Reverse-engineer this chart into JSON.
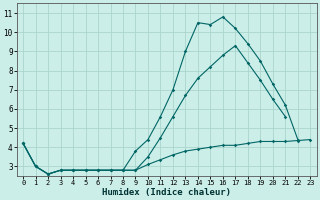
{
  "xlabel": "Humidex (Indice chaleur)",
  "bg_color": "#cceee8",
  "grid_color": "#aad4cc",
  "line_color": "#006666",
  "x_ticks": [
    0,
    1,
    2,
    3,
    4,
    5,
    6,
    7,
    8,
    9,
    10,
    11,
    12,
    13,
    14,
    15,
    16,
    17,
    18,
    19,
    20,
    21,
    22,
    23
  ],
  "y_ticks": [
    3,
    4,
    5,
    6,
    7,
    8,
    9,
    10,
    11
  ],
  "ylim": [
    2.5,
    11.5
  ],
  "xlim": [
    -0.5,
    23.5
  ],
  "series1_x": [
    0,
    1,
    2,
    3,
    4,
    5,
    6,
    7,
    8,
    9,
    10,
    11,
    12,
    13,
    14,
    15,
    16,
    17,
    18,
    19,
    20,
    21,
    22,
    23
  ],
  "series1_y": [
    4.2,
    3.0,
    2.6,
    2.8,
    2.8,
    2.8,
    2.8,
    2.8,
    2.8,
    2.8,
    3.1,
    3.35,
    3.6,
    3.8,
    3.9,
    4.0,
    4.1,
    4.1,
    4.2,
    4.3,
    4.3,
    4.3,
    4.35,
    4.4
  ],
  "series2_x": [
    0,
    1,
    2,
    3,
    4,
    5,
    6,
    7,
    8,
    9,
    10,
    11,
    12,
    13,
    14,
    15,
    16,
    17,
    18,
    19,
    20,
    21,
    22
  ],
  "series2_y": [
    4.2,
    3.0,
    2.6,
    2.8,
    2.8,
    2.8,
    2.8,
    2.8,
    2.8,
    3.8,
    4.4,
    5.6,
    7.0,
    9.0,
    10.5,
    10.4,
    10.8,
    10.2,
    9.4,
    8.5,
    7.3,
    6.2,
    4.4
  ],
  "series3_x": [
    0,
    1,
    2,
    3,
    4,
    5,
    6,
    7,
    8,
    9,
    10,
    11,
    12,
    13,
    14,
    15,
    16,
    17,
    18,
    19,
    20,
    21
  ],
  "series3_y": [
    4.2,
    3.0,
    2.6,
    2.8,
    2.8,
    2.8,
    2.8,
    2.8,
    2.8,
    2.8,
    3.5,
    4.5,
    5.6,
    6.7,
    7.6,
    8.2,
    8.8,
    9.3,
    8.4,
    7.5,
    6.5,
    5.6
  ]
}
